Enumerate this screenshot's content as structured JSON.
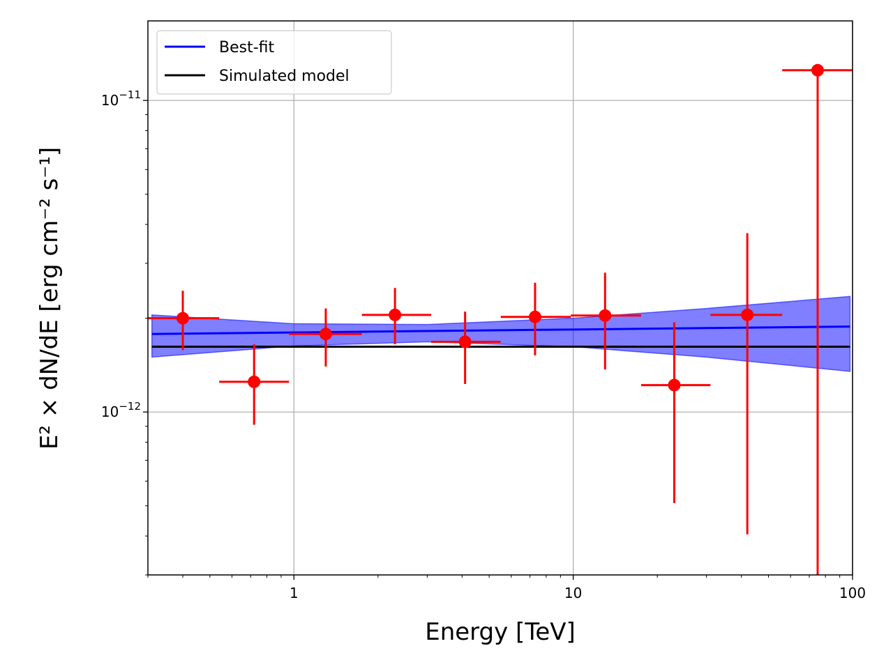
{
  "chart_data": {
    "type": "scatter",
    "xlabel": "Energy [TeV]",
    "ylabel": "E² × dN/dE [erg cm⁻² s⁻¹]",
    "xscale": "log",
    "yscale": "log",
    "xlim": [
      0.3,
      100
    ],
    "ylim": [
      3e-13,
      1.8e-11
    ],
    "grid": true,
    "legend_position": "top-left",
    "x_ticks": [
      {
        "value": 1,
        "label": "1"
      },
      {
        "value": 10,
        "label": "10"
      },
      {
        "value": 100,
        "label": "100"
      }
    ],
    "y_ticks": [
      {
        "value": 1e-12,
        "mantissa": "10",
        "exponent": "−12"
      },
      {
        "value": 1e-11,
        "mantissa": "10",
        "exponent": "−11"
      }
    ],
    "series": [
      {
        "name": "Best-fit",
        "kind": "line",
        "color": "#0000ff",
        "x": [
          0.31,
          1,
          3,
          10,
          30,
          98
        ],
        "y": [
          1.78e-12,
          1.8e-12,
          1.82e-12,
          1.84e-12,
          1.86e-12,
          1.88e-12
        ],
        "band_upper": [
          2.05e-12,
          1.92e-12,
          1.91e-12,
          2e-12,
          2.15e-12,
          2.35e-12
        ],
        "band_lower": [
          1.5e-12,
          1.63e-12,
          1.68e-12,
          1.62e-12,
          1.5e-12,
          1.35e-12
        ],
        "band_color": "#0000ff"
      },
      {
        "name": "Simulated model",
        "kind": "line",
        "color": "#000000",
        "x": [
          0.31,
          98
        ],
        "y": [
          1.62e-12,
          1.62e-12
        ]
      },
      {
        "name": "",
        "kind": "points",
        "color": "#ff0000",
        "points": [
          {
            "x": 0.4,
            "x_low": 0.3,
            "x_high": 0.54,
            "y": 2e-12,
            "y_low": 1.58e-12,
            "y_high": 2.45e-12
          },
          {
            "x": 0.72,
            "x_low": 0.54,
            "x_high": 0.96,
            "y": 1.25e-12,
            "y_low": 9.1e-13,
            "y_high": 1.65e-12
          },
          {
            "x": 1.3,
            "x_low": 0.96,
            "x_high": 1.75,
            "y": 1.78e-12,
            "y_low": 1.4e-12,
            "y_high": 2.15e-12
          },
          {
            "x": 2.3,
            "x_low": 1.75,
            "x_high": 3.1,
            "y": 2.05e-12,
            "y_low": 1.65e-12,
            "y_high": 2.5e-12
          },
          {
            "x": 4.1,
            "x_low": 3.1,
            "x_high": 5.5,
            "y": 1.68e-12,
            "y_low": 1.23e-12,
            "y_high": 2.1e-12
          },
          {
            "x": 7.3,
            "x_low": 5.5,
            "x_high": 9.8,
            "y": 2.02e-12,
            "y_low": 1.52e-12,
            "y_high": 2.6e-12
          },
          {
            "x": 13.0,
            "x_low": 9.8,
            "x_high": 17.5,
            "y": 2.04e-12,
            "y_low": 1.37e-12,
            "y_high": 2.8e-12
          },
          {
            "x": 23.0,
            "x_low": 17.5,
            "x_high": 31.0,
            "y": 1.22e-12,
            "y_low": 5.1e-13,
            "y_high": 1.94e-12
          },
          {
            "x": 42.0,
            "x_low": 31.0,
            "x_high": 56.0,
            "y": 2.05e-12,
            "y_low": 4.05e-13,
            "y_high": 3.75e-12
          },
          {
            "x": 75.0,
            "x_low": 56.0,
            "x_high": 100.0,
            "y": 1.25e-11,
            "y_low": 3e-13,
            "y_high": 1.25e-11
          }
        ]
      }
    ]
  }
}
